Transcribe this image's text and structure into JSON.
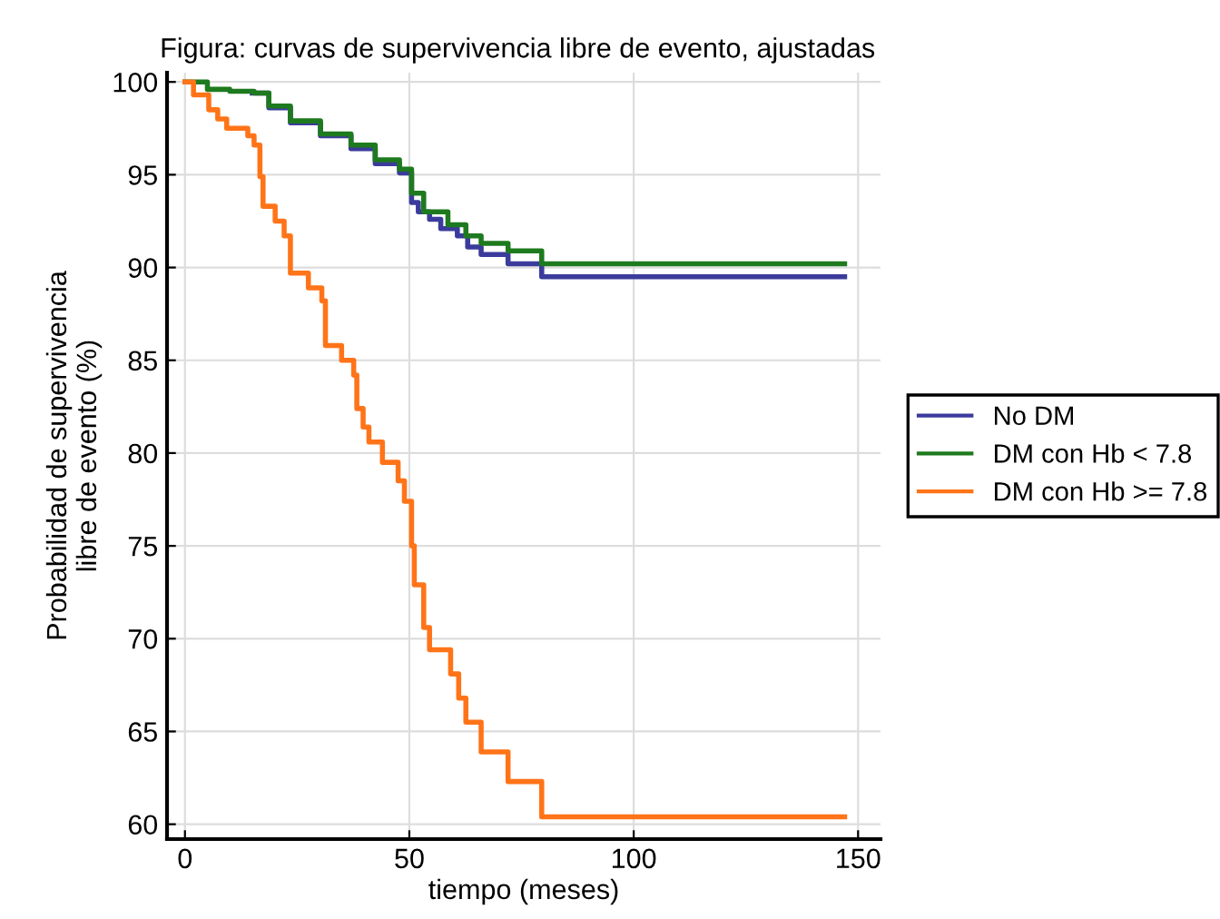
{
  "chart_data": {
    "type": "step",
    "title": "Figura: curvas de supervivencia libre de evento, ajustadas",
    "xlabel": "tiempo (meses)",
    "ylabel": "Probabilidad de supervivencia\nlibre de evento (%)",
    "xlim": [
      -4,
      155
    ],
    "ylim": [
      59.2,
      100.5
    ],
    "xticks": [
      0,
      50,
      100,
      150
    ],
    "yticks": [
      60,
      65,
      70,
      75,
      80,
      85,
      90,
      95,
      100
    ],
    "grid": true,
    "legend": "right",
    "line_style": "solid",
    "marker": "none",
    "series": [
      {
        "name": "No DM",
        "color": "#3b3b9c",
        "x": [
          15,
          18.7,
          23.5,
          30.2,
          37,
          42.4,
          47.8,
          50.5,
          52,
          54.5,
          57,
          60.7,
          63,
          66,
          72,
          79.5,
          147
        ],
        "values": [
          99.4,
          98.6,
          97.8,
          97.1,
          96.4,
          95.6,
          95.1,
          93.5,
          93.0,
          92.6,
          92.1,
          91.7,
          91.1,
          90.7,
          90.2,
          89.5,
          89.5
        ]
      },
      {
        "name": "DM con Hb < 7.8",
        "color": "#1e7a1e",
        "x": [
          0,
          5,
          10,
          15.4,
          18.7,
          23.5,
          30.2,
          37,
          42.4,
          47.8,
          50.5,
          53.2,
          58.6,
          62.6,
          66,
          72,
          79.5,
          147
        ],
        "values": [
          100,
          99.6,
          99.5,
          99.4,
          98.7,
          97.9,
          97.2,
          96.6,
          95.8,
          95.3,
          94.0,
          93.0,
          92.3,
          91.7,
          91.3,
          90.9,
          90.2,
          90.2
        ]
      },
      {
        "name": "DM con Hb >= 7.8",
        "color": "#ff7418",
        "x": [
          0,
          1.9,
          5.3,
          7.3,
          9.3,
          14,
          15.4,
          16.7,
          17.4,
          20.1,
          22.1,
          23.5,
          27.5,
          30.5,
          31.3,
          34.9,
          37.6,
          38.3,
          39.7,
          41,
          44,
          47.5,
          48.9,
          50.5,
          51.1,
          53.2,
          54.5,
          59.2,
          61,
          62.6,
          66,
          72,
          79.5,
          147
        ],
        "values": [
          100,
          99.3,
          98.5,
          98.0,
          97.5,
          97.1,
          96.6,
          94.9,
          93.3,
          92.5,
          91.7,
          89.7,
          88.9,
          88.2,
          85.8,
          85.0,
          84.2,
          82.4,
          81.4,
          80.6,
          79.5,
          78.5,
          77.4,
          75.0,
          72.9,
          70.6,
          69.4,
          68.1,
          66.8,
          65.5,
          63.9,
          62.3,
          60.4,
          60.4
        ]
      }
    ]
  }
}
